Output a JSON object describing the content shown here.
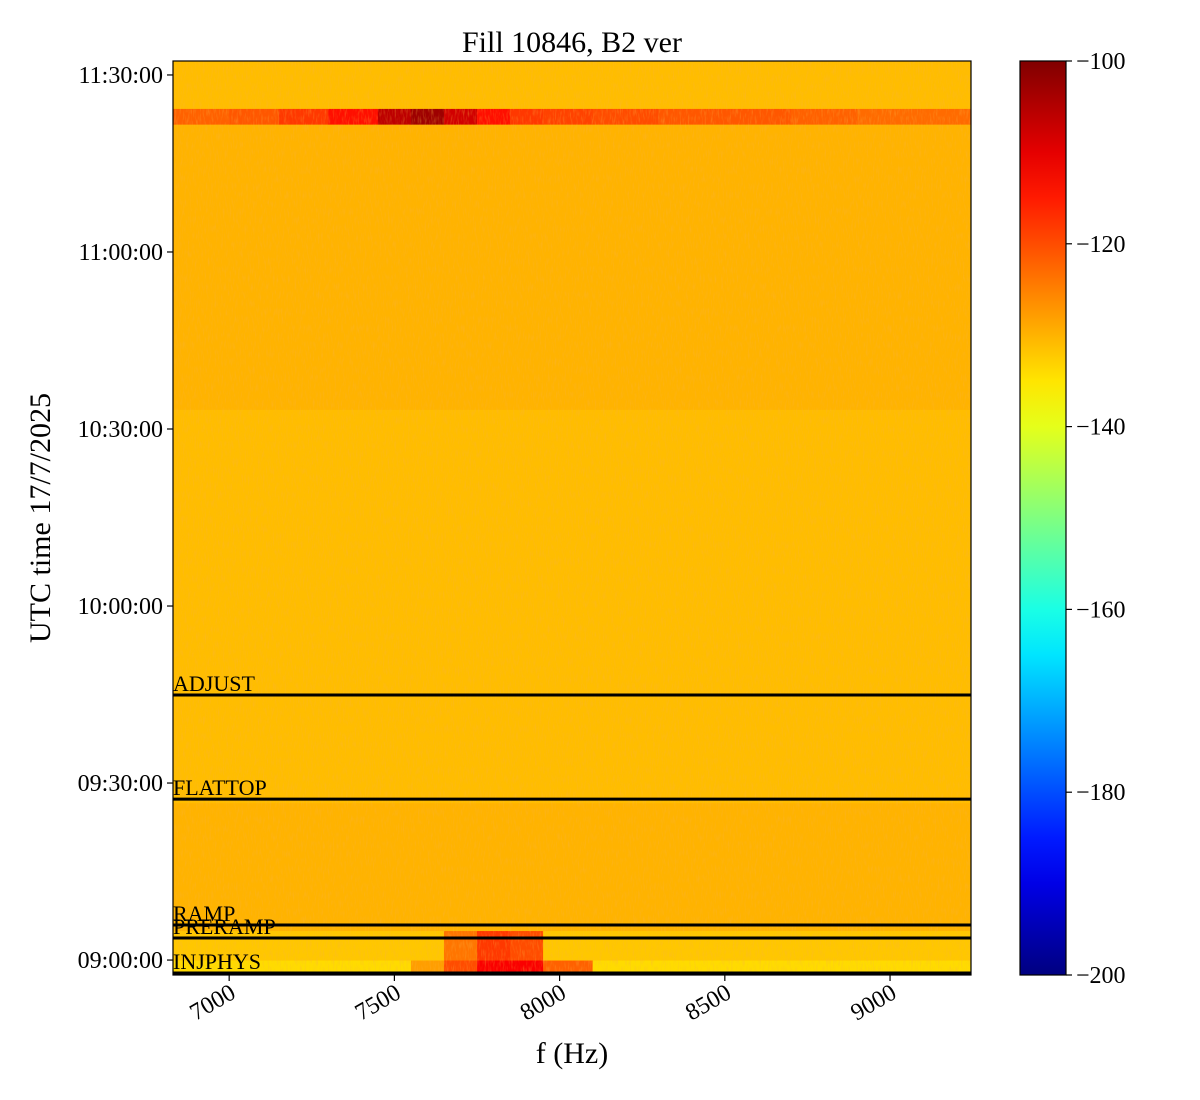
{
  "chart_data": {
    "type": "spectrogram",
    "title": "Fill 10846, B2 ver",
    "xlabel": "f (Hz)",
    "ylabel": "UTC time 17/7/2025",
    "colormap": "jet",
    "xlim": [
      6830,
      9245
    ],
    "xticks": [
      7000,
      7500,
      8000,
      8500,
      9000
    ],
    "ylim": [
      32248,
      41542
    ],
    "yticks": [
      {
        "value": 32400,
        "label": "09:00:00"
      },
      {
        "value": 34200,
        "label": "09:30:00"
      },
      {
        "value": 36000,
        "label": "10:00:00"
      },
      {
        "value": 37800,
        "label": "10:30:00"
      },
      {
        "value": 39600,
        "label": "11:00:00"
      },
      {
        "value": 41400,
        "label": "11:30:00"
      }
    ],
    "clim": [
      -200,
      -100
    ],
    "cticks": [
      {
        "value": -100,
        "label": "−100"
      },
      {
        "value": -120,
        "label": "−120"
      },
      {
        "value": -140,
        "label": "−140"
      },
      {
        "value": -160,
        "label": "−160"
      },
      {
        "value": -180,
        "label": "−180"
      },
      {
        "value": -200,
        "label": "−200"
      }
    ],
    "xbins": [
      6830,
      7000,
      7150,
      7300,
      7450,
      7550,
      7650,
      7750,
      7850,
      7950,
      8100,
      8300,
      8500,
      8700,
      8900,
      9100,
      9245
    ],
    "ybins": [
      32248,
      32400,
      32700,
      34000,
      36000,
      38000,
      40900,
      41060,
      41542
    ],
    "z": [
      [
        -134,
        -134,
        -134,
        -134,
        -134,
        -128,
        -120,
        -112,
        -112,
        -122,
        -134,
        -134,
        -134,
        -134,
        -134,
        -134
      ],
      [
        -132,
        -132,
        -132,
        -132,
        -132,
        -132,
        -124,
        -118,
        -120,
        -132,
        -132,
        -132,
        -132,
        -132,
        -132,
        -132
      ],
      [
        -130,
        -130,
        -130,
        -130,
        -130,
        -130,
        -130,
        -130,
        -130,
        -130,
        -130,
        -130,
        -130,
        -130,
        -130,
        -130
      ],
      [
        -131,
        -131,
        -131,
        -131,
        -131,
        -131,
        -131,
        -131,
        -131,
        -131,
        -131,
        -131,
        -131,
        -131,
        -131,
        -131
      ],
      [
        -131,
        -131,
        -131,
        -131,
        -131,
        -131,
        -131,
        -131,
        -131,
        -131,
        -131,
        -131,
        -131,
        -131,
        -131,
        -131
      ],
      [
        -130,
        -130,
        -130,
        -130,
        -130,
        -130,
        -130,
        -130,
        -130,
        -130,
        -130,
        -130,
        -130,
        -130,
        -130,
        -130
      ],
      [
        -122,
        -121,
        -118,
        -114,
        -106,
        -103,
        -108,
        -114,
        -118,
        -119,
        -120,
        -121,
        -121,
        -122,
        -123,
        -123
      ],
      [
        -131,
        -131,
        -131,
        -131,
        -131,
        -131,
        -131,
        -131,
        -131,
        -131,
        -131,
        -131,
        -131,
        -131,
        -131,
        -131
      ]
    ],
    "events": [
      {
        "label": "ADJUST",
        "time": 35095
      },
      {
        "label": "FLATTOP",
        "time": 34037
      },
      {
        "label": "RAMP",
        "time": 32756
      },
      {
        "label": "PRERAMP",
        "time": 32624
      },
      {
        "label": "INJPHYS",
        "time": 32268
      }
    ]
  }
}
